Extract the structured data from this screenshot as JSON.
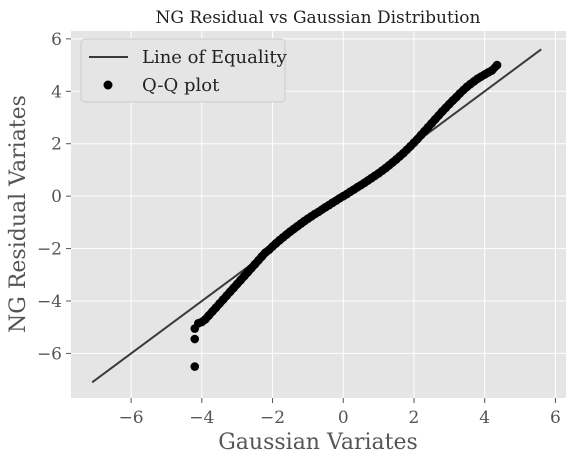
{
  "chart_data": {
    "type": "scatter",
    "title": "NG Residual vs Gaussian Distribution",
    "xlabel": "Gaussian Variates",
    "ylabel": "NG Residual Variates",
    "xlim": [
      -7.7,
      6.3
    ],
    "ylim": [
      -7.7,
      6.3
    ],
    "xticks": [
      -6,
      -4,
      -2,
      0,
      2,
      4,
      6
    ],
    "yticks": [
      -6,
      -4,
      -2,
      0,
      2,
      4,
      6
    ],
    "xtick_labels": [
      "−6",
      "−4",
      "−2",
      "0",
      "2",
      "4",
      "6"
    ],
    "ytick_labels": [
      "−6",
      "−4",
      "−2",
      "0",
      "2",
      "4",
      "6"
    ],
    "grid": true,
    "legend_position": "top-left",
    "legend": [
      "Line of Equality",
      "Q-Q plot"
    ],
    "series": [
      {
        "name": "Line of Equality",
        "kind": "line",
        "color": "#3a3a3a",
        "x": [
          -7.1,
          5.6
        ],
        "y": [
          -7.1,
          5.6
        ]
      },
      {
        "name": "Q-Q plot",
        "kind": "scatter",
        "color": "#000000",
        "x": [
          -4.2,
          -4.2,
          -4.2,
          -4.1,
          -4.0,
          -3.9,
          -3.8,
          -3.7,
          -3.6,
          -3.5,
          -3.4,
          -3.3,
          -3.2,
          -3.1,
          -3.0,
          -2.9,
          -2.8,
          -2.7,
          -2.6,
          -2.5,
          -2.4,
          -2.3,
          -2.2,
          -2.1,
          -2.0,
          -1.9,
          -1.8,
          -1.7,
          -1.6,
          -1.5,
          -1.4,
          -1.3,
          -1.2,
          -1.1,
          -1.0,
          -0.9,
          -0.8,
          -0.7,
          -0.6,
          -0.5,
          -0.4,
          -0.3,
          -0.2,
          -0.1,
          0.0,
          0.1,
          0.2,
          0.3,
          0.4,
          0.5,
          0.6,
          0.7,
          0.8,
          0.9,
          1.0,
          1.1,
          1.2,
          1.3,
          1.4,
          1.5,
          1.6,
          1.7,
          1.8,
          1.9,
          2.0,
          2.1,
          2.2,
          2.3,
          2.4,
          2.5,
          2.6,
          2.7,
          2.8,
          2.9,
          3.0,
          3.1,
          3.2,
          3.3,
          3.4,
          3.5,
          3.6,
          3.7,
          3.8,
          3.9,
          4.0,
          4.1,
          4.2,
          4.35
        ],
        "y": [
          -6.5,
          -5.45,
          -5.05,
          -4.85,
          -4.8,
          -4.7,
          -4.55,
          -4.4,
          -4.25,
          -4.1,
          -3.95,
          -3.8,
          -3.65,
          -3.5,
          -3.35,
          -3.2,
          -3.05,
          -2.9,
          -2.75,
          -2.6,
          -2.45,
          -2.3,
          -2.15,
          -2.05,
          -1.92,
          -1.8,
          -1.68,
          -1.57,
          -1.46,
          -1.35,
          -1.25,
          -1.15,
          -1.05,
          -0.95,
          -0.86,
          -0.77,
          -0.68,
          -0.6,
          -0.51,
          -0.42,
          -0.34,
          -0.25,
          -0.17,
          -0.08,
          0.0,
          0.08,
          0.17,
          0.25,
          0.34,
          0.42,
          0.51,
          0.6,
          0.69,
          0.78,
          0.87,
          0.97,
          1.07,
          1.18,
          1.29,
          1.4,
          1.52,
          1.64,
          1.77,
          1.9,
          2.04,
          2.18,
          2.33,
          2.48,
          2.63,
          2.78,
          2.93,
          3.08,
          3.23,
          3.37,
          3.51,
          3.65,
          3.78,
          3.92,
          4.05,
          4.17,
          4.28,
          4.38,
          4.48,
          4.56,
          4.64,
          4.72,
          4.79,
          5.0
        ]
      }
    ]
  }
}
